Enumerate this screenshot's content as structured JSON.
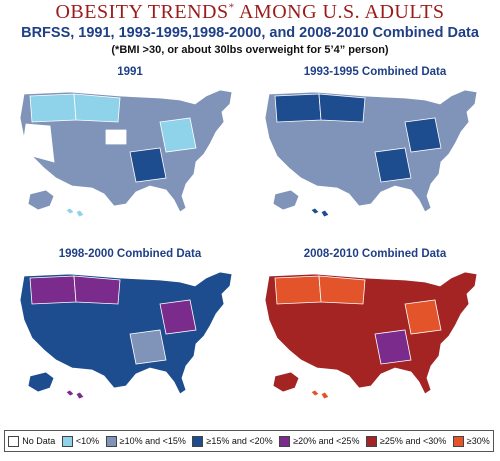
{
  "header": {
    "title": "OBESITY TRENDS",
    "title_mark": "*",
    "title_rest": " AMONG U.S. ADULTS",
    "subtitle": "BRFSS, 1991, 1993-1995,1998-2000, and 2008-2010 Combined Data",
    "note": "(*BMI >30, or about 30lbs overweight for 5’4” person)"
  },
  "maps": [
    {
      "title": "1991",
      "colors": {
        "base": "#7f94b8",
        "highlight": "#8fd3ea",
        "accent": "#1d4c8f",
        "nodata": "#ffffff"
      }
    },
    {
      "title": "1993-1995 Combined Data",
      "colors": {
        "base": "#7f94b8",
        "highlight": "#1d4c8f",
        "accent": "#1d4c8f",
        "nodata": "#ffffff"
      }
    },
    {
      "title": "1998-2000 Combined Data",
      "colors": {
        "base": "#1d4c8f",
        "highlight": "#7b2b8c",
        "accent": "#7f94b8",
        "nodata": "#ffffff"
      }
    },
    {
      "title": "2008-2010 Combined Data",
      "colors": {
        "base": "#a42323",
        "highlight": "#e3542b",
        "accent": "#7b2b8c",
        "nodata": "#ffffff"
      }
    }
  ],
  "legend": [
    {
      "label": "No Data",
      "color": "#ffffff"
    },
    {
      "label": "<10%",
      "color": "#8fd3ea"
    },
    {
      "label": "≥10% and <15%",
      "color": "#7f94b8"
    },
    {
      "label": "≥15% and <20%",
      "color": "#1d4c8f"
    },
    {
      "label": "≥20% and <25%",
      "color": "#7b2b8c"
    },
    {
      "label": "≥25% and <30%",
      "color": "#a42323"
    },
    {
      "label": "≥30%",
      "color": "#e3542b"
    }
  ]
}
